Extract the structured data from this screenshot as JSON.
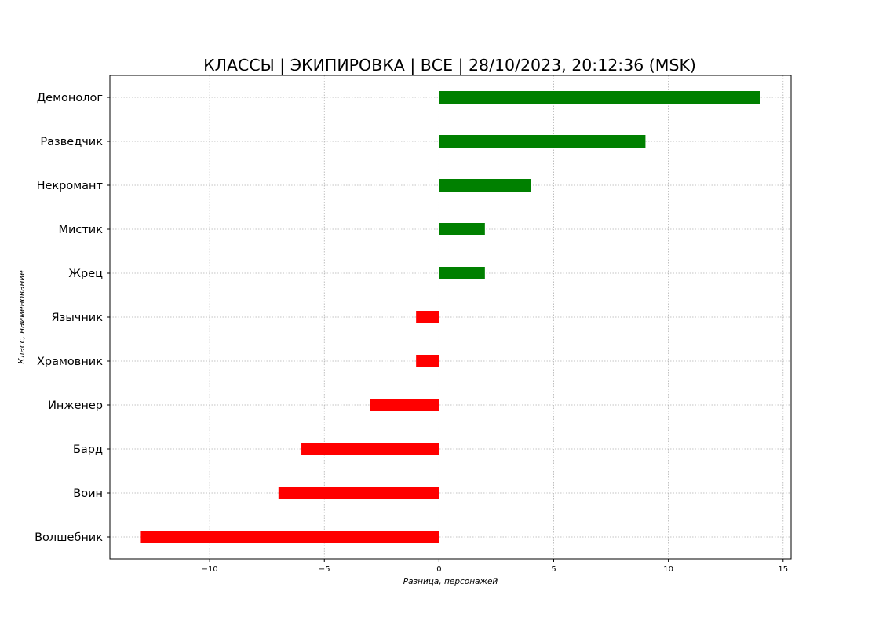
{
  "chart_data": {
    "type": "bar",
    "orientation": "horizontal",
    "title": "КЛАССЫ | ЭКИПИРОВКА | ВСЕ | 28/10/2023, 20:12:36 (MSK)",
    "xlabel": "Разница, персонажей",
    "ylabel": "Класс, наименование",
    "categories": [
      "Демонолог",
      "Разведчик",
      "Некромант",
      "Мистик",
      "Жрец",
      "Язычник",
      "Храмовник",
      "Инженер",
      "Бард",
      "Воин",
      "Волшебник"
    ],
    "values": [
      14,
      9,
      4,
      2,
      2,
      -1,
      -1,
      -3,
      -6,
      -7,
      -13
    ],
    "xlim": [
      -14.35,
      15.35
    ],
    "xticks": [
      -10,
      -5,
      0,
      5,
      10,
      15
    ],
    "xtick_labels": [
      "−10",
      "−5",
      "0",
      "5",
      "10",
      "15"
    ],
    "grid": true,
    "colors": {
      "positive": "#008000",
      "negative": "#ff0000"
    }
  }
}
